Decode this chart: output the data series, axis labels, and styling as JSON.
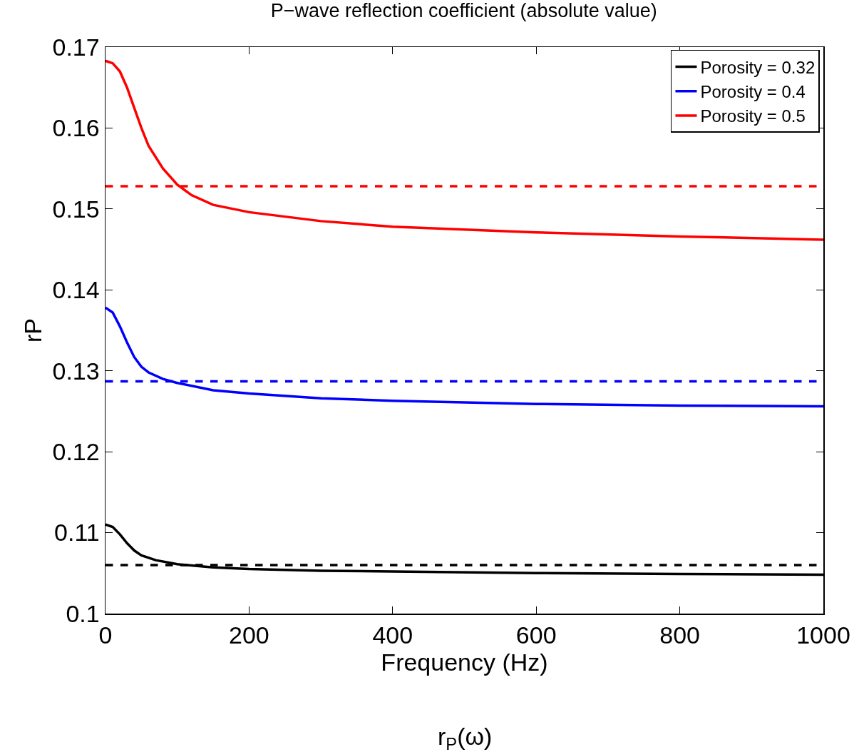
{
  "chart_data": {
    "type": "line",
    "title": "P−wave reflection coefficient (absolute value)",
    "xlabel": "Frequency (Hz)",
    "ylabel": "rP",
    "annotations": [
      "r$_{P}$(ω)"
    ],
    "series": [
      {
        "name": "Porosity = 0.32",
        "color": "#000000",
        "x": [
          0,
          10,
          20,
          30,
          40,
          50,
          70,
          100,
          150,
          200,
          300,
          400,
          600,
          800,
          1000
        ],
        "values": [
          0.111,
          0.1107,
          0.1098,
          0.1087,
          0.1078,
          0.1072,
          0.1066,
          0.1061,
          0.1057,
          0.1055,
          0.1053,
          0.1052,
          0.105,
          0.1049,
          0.1048
        ]
      },
      {
        "name": "Porosity = 0.4",
        "color": "#0000ff",
        "x": [
          0,
          10,
          20,
          30,
          40,
          50,
          60,
          80,
          100,
          150,
          200,
          300,
          400,
          600,
          800,
          1000
        ],
        "values": [
          0.1378,
          0.1372,
          0.1355,
          0.1335,
          0.1317,
          0.1305,
          0.1298,
          0.129,
          0.1285,
          0.1276,
          0.1272,
          0.1266,
          0.1263,
          0.1259,
          0.1257,
          0.1256
        ]
      },
      {
        "name": "Porosity = 0.5",
        "color": "#ff0000",
        "x": [
          0,
          10,
          20,
          30,
          40,
          50,
          60,
          80,
          100,
          120,
          150,
          200,
          300,
          400,
          600,
          800,
          1000
        ],
        "values": [
          0.1683,
          0.168,
          0.167,
          0.165,
          0.1625,
          0.16,
          0.1578,
          0.155,
          0.153,
          0.1517,
          0.1505,
          0.1496,
          0.1485,
          0.1478,
          0.1471,
          0.1466,
          0.1462
        ]
      }
    ],
    "ref_lines": [
      {
        "axis": "y",
        "value": 0.106,
        "color": "#000000",
        "line_style": "dashed"
      },
      {
        "axis": "y",
        "value": 0.1287,
        "color": "#0000ff",
        "line_style": "dashed"
      },
      {
        "axis": "y",
        "value": 0.1528,
        "color": "#ff0000",
        "line_style": "dashed"
      }
    ],
    "xlim": [
      0,
      1000
    ],
    "xticks": [
      0,
      200,
      400,
      600,
      800,
      1000
    ],
    "ylim": [
      0.1,
      0.17
    ],
    "yticks": [
      0.1,
      0.11,
      0.12,
      0.13,
      0.14,
      0.15,
      0.16,
      0.17
    ],
    "legend": "top right",
    "grid": false,
    "marker": "none",
    "line_style": "solid"
  }
}
